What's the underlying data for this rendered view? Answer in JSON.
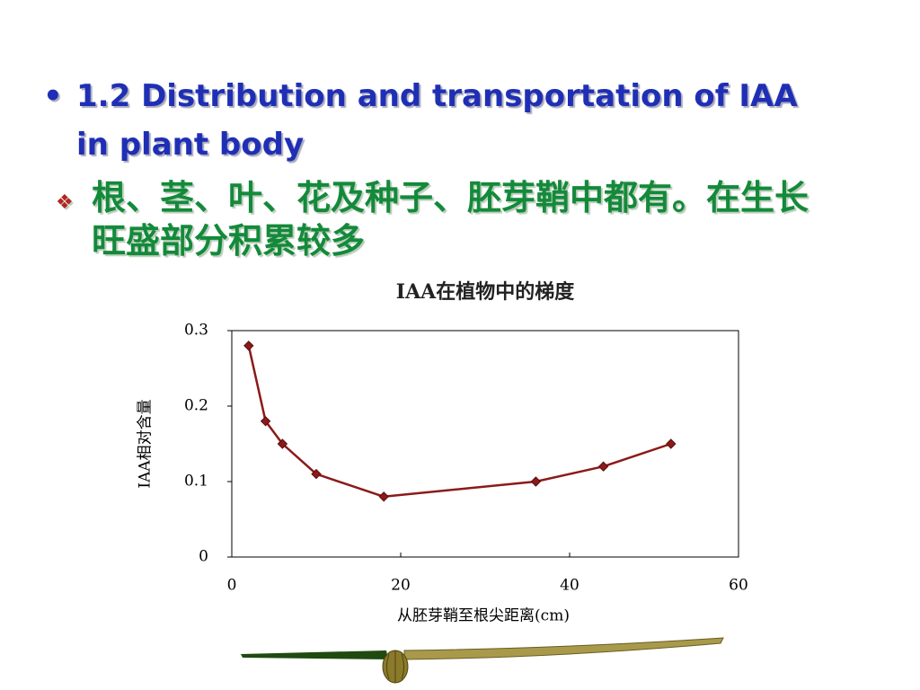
{
  "heading": "1.2 Distribution and transportation of IAA in plant body",
  "subpoint": "根、茎、叶、花及种子、胚芽鞘中都有。在生长旺盛部分积累较多",
  "chart_data": {
    "type": "line",
    "title": "IAA在植物中的梯度",
    "x_label": "从胚芽鞘至根尖距离(cm)",
    "y_label": "IAA相对含量",
    "x": [
      2,
      4,
      6,
      10,
      18,
      36,
      44,
      52
    ],
    "values": [
      0.28,
      0.18,
      0.15,
      0.11,
      0.08,
      0.1,
      0.12,
      0.15
    ],
    "color": "#8b1a1a",
    "xlim": [
      0,
      60
    ],
    "xticks": [
      0,
      20,
      40,
      60
    ],
    "ylim": [
      0,
      0.3
    ],
    "yticks": [
      0,
      0.1,
      0.2,
      0.3
    ]
  }
}
